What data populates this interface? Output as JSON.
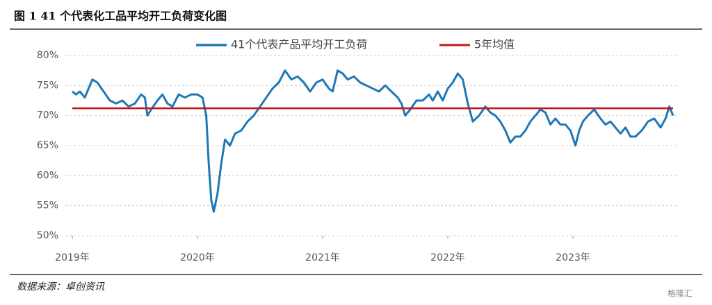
{
  "chart_data": {
    "type": "line",
    "title": "图 1 41 个代表化工品平均开工负荷变化图",
    "source": "数据来源：卓创资讯",
    "watermark": "格隆汇",
    "x": [
      2019.0,
      2019.03,
      2019.06,
      2019.1,
      2019.13,
      2019.16,
      2019.2,
      2019.25,
      2019.3,
      2019.35,
      2019.4,
      2019.45,
      2019.5,
      2019.55,
      2019.58,
      2019.6,
      2019.63,
      2019.68,
      2019.72,
      2019.76,
      2019.8,
      2019.85,
      2019.9,
      2019.95,
      2020.0,
      2020.04,
      2020.07,
      2020.09,
      2020.11,
      2020.13,
      2020.16,
      2020.19,
      2020.22,
      2020.26,
      2020.3,
      2020.35,
      2020.4,
      2020.45,
      2020.5,
      2020.55,
      2020.6,
      2020.65,
      2020.7,
      2020.75,
      2020.8,
      2020.85,
      2020.9,
      2020.95,
      2021.0,
      2021.05,
      2021.08,
      2021.12,
      2021.16,
      2021.2,
      2021.25,
      2021.3,
      2021.35,
      2021.4,
      2021.45,
      2021.5,
      2021.55,
      2021.6,
      2021.63,
      2021.66,
      2021.7,
      2021.75,
      2021.8,
      2021.85,
      2021.88,
      2021.92,
      2021.96,
      2022.0,
      2022.04,
      2022.08,
      2022.12,
      2022.16,
      2022.2,
      2022.25,
      2022.3,
      2022.34,
      2022.38,
      2022.42,
      2022.46,
      2022.5,
      2022.54,
      2022.58,
      2022.62,
      2022.66,
      2022.7,
      2022.74,
      2022.78,
      2022.82,
      2022.86,
      2022.9,
      2022.94,
      2022.98,
      2023.02,
      2023.05,
      2023.08,
      2023.12,
      2023.17,
      2023.22,
      2023.26,
      2023.3,
      2023.34,
      2023.38,
      2023.42,
      2023.46,
      2023.5,
      2023.55,
      2023.6,
      2023.65,
      2023.7,
      2023.74,
      2023.77,
      2023.8
    ],
    "series": [
      {
        "name": "41个代表产品平均开工负荷",
        "color": "#1f77b4",
        "values": [
          74,
          73.5,
          74,
          73,
          74.5,
          76,
          75.5,
          74,
          72.5,
          72,
          72.5,
          71.5,
          72,
          73.5,
          73,
          70,
          71,
          72.5,
          73.5,
          72,
          71.5,
          73.5,
          73,
          73.5,
          73.5,
          73,
          70,
          62,
          56,
          54,
          57,
          62,
          66,
          65,
          67,
          67.5,
          69,
          70,
          71.5,
          73,
          74.5,
          75.5,
          77.5,
          76,
          76.5,
          75.5,
          74,
          75.5,
          76,
          74.5,
          74,
          77.5,
          77,
          76,
          76.5,
          75.5,
          75,
          74.5,
          74,
          75,
          74,
          73,
          72,
          70,
          71,
          72.5,
          72.5,
          73.5,
          72.5,
          74,
          72.5,
          74.5,
          75.5,
          77,
          76,
          72,
          69,
          70,
          71.5,
          70.5,
          70,
          69,
          67.5,
          65.5,
          66.5,
          66.5,
          67.5,
          69,
          70,
          71,
          70.5,
          68.5,
          69.5,
          68.5,
          68.5,
          67.5,
          65,
          67.5,
          69,
          70,
          71,
          69.5,
          68.5,
          69,
          68,
          67,
          68,
          66.5,
          66.5,
          67.5,
          69,
          69.5,
          68,
          69.5,
          71.5,
          70
        ]
      }
    ],
    "average": {
      "name": "5年均值",
      "color": "#c0161c",
      "value": 71.2
    },
    "xlim": [
      2019,
      2023.8
    ],
    "xticks": [
      {
        "value": 2019,
        "label": "2019年"
      },
      {
        "value": 2020,
        "label": "2020年"
      },
      {
        "value": 2021,
        "label": "2021年"
      },
      {
        "value": 2022,
        "label": "2022年"
      },
      {
        "value": 2023,
        "label": "2023年"
      }
    ],
    "ylim": [
      50,
      80
    ],
    "yticks": [
      {
        "value": 50,
        "label": "50%"
      },
      {
        "value": 55,
        "label": "55%"
      },
      {
        "value": 60,
        "label": "60%"
      },
      {
        "value": 65,
        "label": "65%"
      },
      {
        "value": 70,
        "label": "70%"
      },
      {
        "value": 75,
        "label": "75%"
      },
      {
        "value": 80,
        "label": "80%"
      }
    ],
    "grid": true
  }
}
